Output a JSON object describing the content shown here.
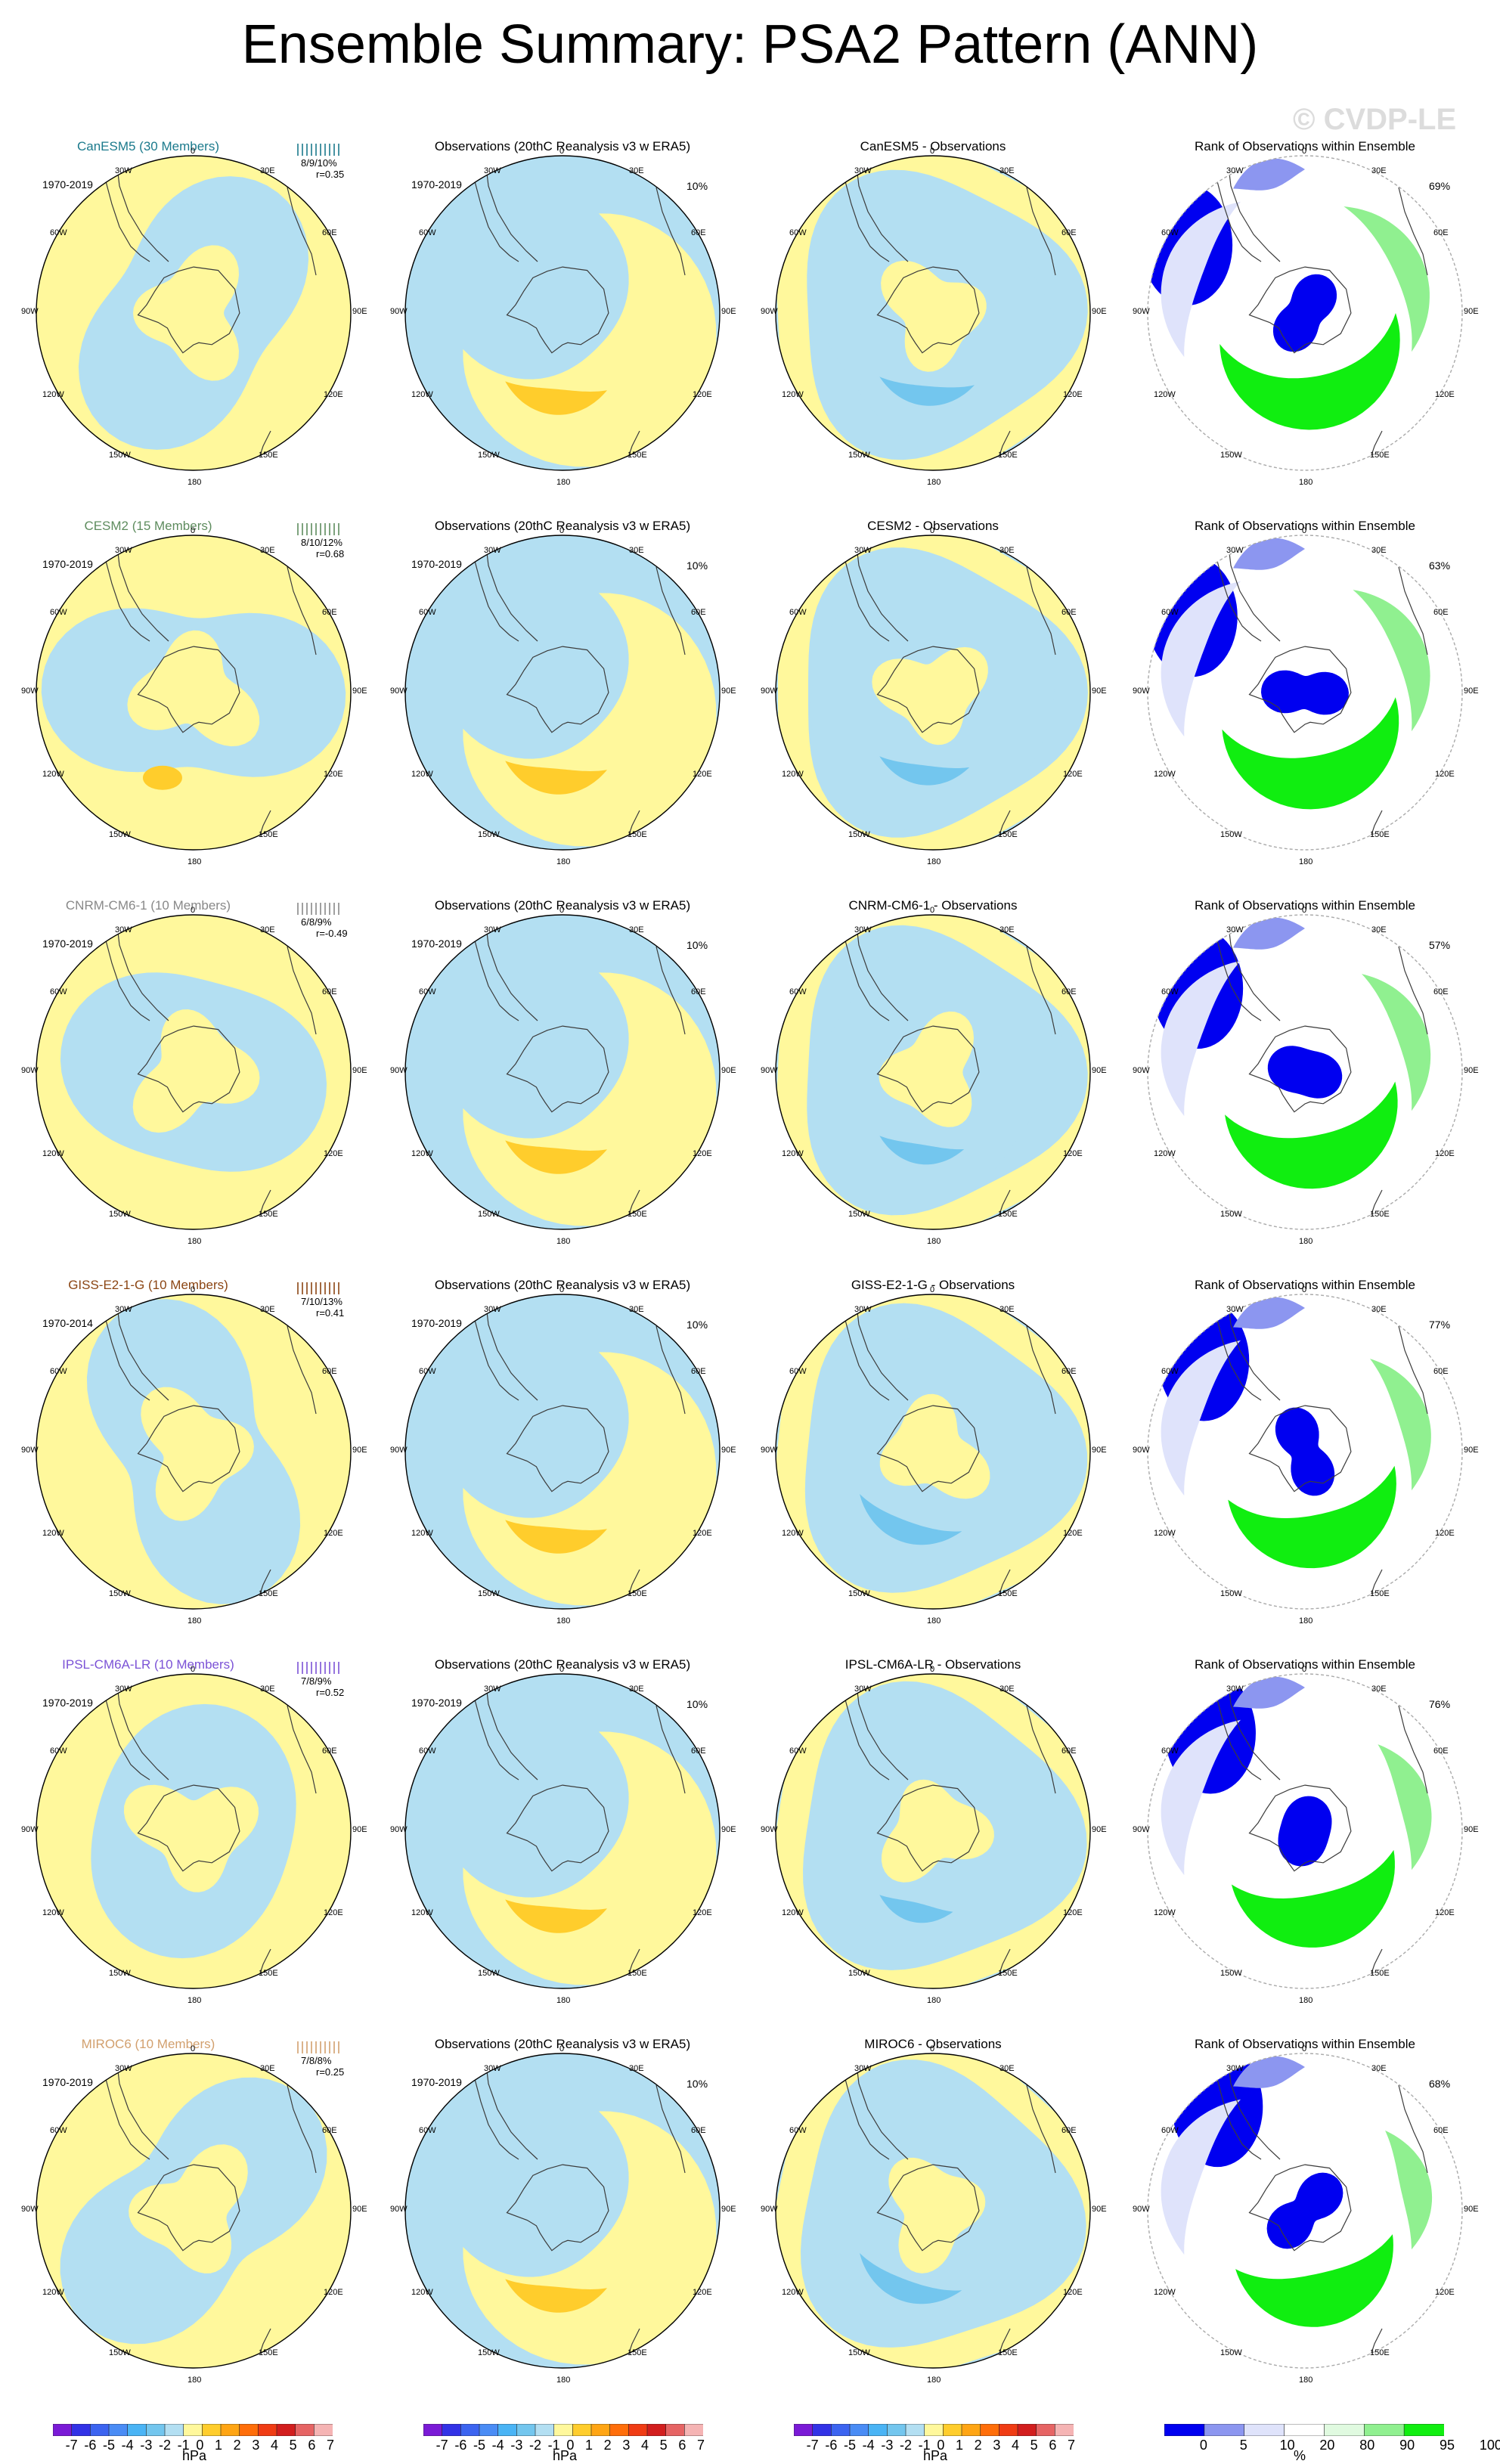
{
  "title": "Ensemble Summary: PSA2 Pattern (ANN)",
  "watermark": "© CVDP-LE",
  "colors": {
    "pos1": "#fff89c",
    "pos2": "#ffcd2c",
    "neg1": "#b3dff2",
    "neg2": "#73c6ee",
    "rank_low": "#0000f0",
    "rank_low2": "#8c96f0",
    "rank_low3": "#dfe3fb",
    "rank_high": "#10ee10",
    "rank_high2": "#90f090",
    "rank_high3": "#e0fae0",
    "coast": "#3c3c3c"
  },
  "axis_labels": {
    "top": "0",
    "t30w": "30W",
    "t30e": "30E",
    "t60w": "60W",
    "t60e": "60E",
    "t90w": "90W",
    "t90e": "90E",
    "t120w": "120W",
    "t120e": "120E",
    "t150w": "150W",
    "t150e": "150E",
    "bottom": "180"
  },
  "rows": [
    {
      "model": {
        "title": "CanESM5 (30 Members)",
        "title_color": "#1b7a8c",
        "period": "1970-2019",
        "stats1": "8/9/10%",
        "stats2": "r=0.35"
      },
      "obs": {
        "title": "Observations (20thC Reanalysis v3 w ERA5)",
        "period": "1970-2019",
        "pct": "10%"
      },
      "diff": {
        "title": "CanESM5 - Observations"
      },
      "rank": {
        "title": "Rank of Observations within Ensemble",
        "pct": "69%"
      }
    },
    {
      "model": {
        "title": "CESM2 (15 Members)",
        "title_color": "#5e8c5e",
        "period": "1970-2019",
        "stats1": "8/10/12%",
        "stats2": "r=0.68"
      },
      "obs": {
        "title": "Observations (20thC Reanalysis v3 w ERA5)",
        "period": "1970-2019",
        "pct": "10%"
      },
      "diff": {
        "title": "CESM2 - Observations"
      },
      "rank": {
        "title": "Rank of Observations within Ensemble",
        "pct": "63%"
      }
    },
    {
      "model": {
        "title": "CNRM-CM6-1 (10 Members)",
        "title_color": "#888888",
        "period": "1970-2019",
        "stats1": "6/8/9%",
        "stats2": "r=-0.49"
      },
      "obs": {
        "title": "Observations (20thC Reanalysis v3 w ERA5)",
        "period": "1970-2019",
        "pct": "10%"
      },
      "diff": {
        "title": "CNRM-CM6-1 - Observations"
      },
      "rank": {
        "title": "Rank of Observations within Ensemble",
        "pct": "57%"
      }
    },
    {
      "model": {
        "title": "GISS-E2-1-G (10 Members)",
        "title_color": "#8b4513",
        "period": "1970-2014",
        "stats1": "7/10/13%",
        "stats2": "r=0.41"
      },
      "obs": {
        "title": "Observations (20thC Reanalysis v3 w ERA5)",
        "period": "1970-2019",
        "pct": "10%"
      },
      "diff": {
        "title": "GISS-E2-1-G - Observations"
      },
      "rank": {
        "title": "Rank of Observations within Ensemble",
        "pct": "77%"
      }
    },
    {
      "model": {
        "title": "IPSL-CM6A-LR (10 Members)",
        "title_color": "#7b52d6",
        "period": "1970-2019",
        "stats1": "7/8/9%",
        "stats2": "r=0.52"
      },
      "obs": {
        "title": "Observations (20thC Reanalysis v3 w ERA5)",
        "period": "1970-2019",
        "pct": "10%"
      },
      "diff": {
        "title": "IPSL-CM6A-LR - Observations"
      },
      "rank": {
        "title": "Rank of Observations within Ensemble",
        "pct": "76%"
      }
    },
    {
      "model": {
        "title": "MIROC6 (10 Members)",
        "title_color": "#d2a06e",
        "period": "1970-2019",
        "stats1": "7/8/8%",
        "stats2": "r=0.25"
      },
      "obs": {
        "title": "Observations (20thC Reanalysis v3 w ERA5)",
        "period": "1970-2019",
        "pct": "10%"
      },
      "diff": {
        "title": "MIROC6 - Observations"
      },
      "rank": {
        "title": "Rank of Observations within Ensemble",
        "pct": "68%"
      }
    }
  ],
  "colorbar_hpa": {
    "labels": [
      "-7",
      "-6",
      "-5",
      "-4",
      "-3",
      "-2",
      "-1",
      "0",
      "1",
      "2",
      "3",
      "4",
      "5",
      "6",
      "7"
    ],
    "colors": [
      "#7a1ad6",
      "#3232e6",
      "#3c64f0",
      "#4a8cf5",
      "#4ab4f5",
      "#73c6ee",
      "#b3dff2",
      "#fff89c",
      "#ffcd2c",
      "#ffa514",
      "#ff6e0a",
      "#f03c14",
      "#d21e1e",
      "#e66464",
      "#f5b4b4"
    ],
    "unit": "hPa"
  },
  "colorbar_rank": {
    "labels": [
      "0",
      "5",
      "10",
      "20",
      "80",
      "90",
      "95",
      "100"
    ],
    "colors": [
      "#0000f0",
      "#8c96f0",
      "#dfe3fb",
      "#ffffff",
      "#e0fae0",
      "#90f090",
      "#10ee10"
    ],
    "unit": "%"
  }
}
